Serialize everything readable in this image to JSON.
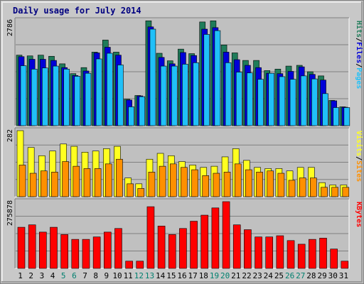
{
  "title": "Daily usage for July 2014",
  "colors": {
    "background": "#c8c8c8",
    "panel": "#c0c0c0",
    "hits": "#1f7c5a",
    "files": "#0000d8",
    "pages": "#20c0f8",
    "visits": "#ffff20",
    "sites": "#ff9000",
    "kbytes": "#ff0000",
    "weekend_label": "#00806f",
    "weekday_label": "#000000",
    "title": "#000080"
  },
  "chart_data": [
    {
      "type": "bar",
      "panel": "hits-files-pages",
      "y_max_label": "2786",
      "ylim": [
        0,
        2786
      ],
      "right_label": [
        "Pages",
        "/",
        "Files",
        "/",
        "Hits"
      ],
      "grid": true,
      "categories": [
        "1",
        "2",
        "3",
        "4",
        "5",
        "6",
        "7",
        "8",
        "9",
        "10",
        "11",
        "12",
        "13",
        "14",
        "15",
        "16",
        "17",
        "18",
        "19",
        "20",
        "21",
        "22",
        "23",
        "24",
        "25",
        "26",
        "27",
        "28",
        "29",
        "30",
        "31"
      ],
      "series": [
        {
          "name": "Hits",
          "values": [
            1870,
            1850,
            1870,
            1840,
            1640,
            1380,
            1540,
            1950,
            2270,
            1950,
            700,
            800,
            2780,
            1920,
            1720,
            2030,
            1910,
            2750,
            2780,
            2140,
            1930,
            1730,
            1730,
            1460,
            1500,
            1580,
            1600,
            1430,
            1320,
            670,
            500
          ]
        },
        {
          "name": "Files",
          "values": [
            1830,
            1760,
            1760,
            1730,
            1540,
            1330,
            1450,
            1930,
            2080,
            1870,
            680,
            790,
            2620,
            1810,
            1640,
            1940,
            1860,
            2560,
            2600,
            1950,
            1750,
            1600,
            1540,
            1390,
            1380,
            1440,
            1560,
            1360,
            1210,
            660,
            490
          ]
        },
        {
          "name": "Pages",
          "values": [
            1590,
            1500,
            1530,
            1580,
            1500,
            1310,
            1390,
            1770,
            1920,
            1610,
            500,
            770,
            2560,
            1580,
            1580,
            1630,
            1670,
            2420,
            2520,
            1670,
            1420,
            1400,
            1230,
            1390,
            1300,
            1230,
            1320,
            1240,
            850,
            480,
            480
          ]
        }
      ]
    },
    {
      "type": "bar",
      "panel": "visits-sites",
      "y_max_label": "282",
      "ylim": [
        0,
        282
      ],
      "right_label": [
        "Sites",
        "/",
        "Visits"
      ],
      "grid": true,
      "categories": [
        "1",
        "2",
        "3",
        "4",
        "5",
        "6",
        "7",
        "8",
        "9",
        "10",
        "11",
        "12",
        "13",
        "14",
        "15",
        "16",
        "17",
        "18",
        "19",
        "20",
        "21",
        "22",
        "23",
        "24",
        "25",
        "26",
        "27",
        "28",
        "29",
        "30",
        "31"
      ],
      "series": [
        {
          "name": "Visits",
          "values": [
            282,
            210,
            175,
            195,
            225,
            215,
            190,
            195,
            205,
            215,
            80,
            55,
            160,
            185,
            175,
            150,
            135,
            125,
            130,
            170,
            205,
            155,
            125,
            120,
            120,
            110,
            125,
            125,
            60,
            50,
            50
          ]
        },
        {
          "name": "Sites",
          "values": [
            135,
            100,
            110,
            105,
            150,
            130,
            120,
            120,
            140,
            160,
            55,
            35,
            105,
            130,
            140,
            125,
            115,
            90,
            100,
            105,
            140,
            115,
            105,
            110,
            100,
            70,
            80,
            80,
            40,
            40,
            40
          ]
        }
      ]
    },
    {
      "type": "bar",
      "panel": "kbytes",
      "y_max_label": "275878",
      "ylim": [
        0,
        275878
      ],
      "right_label": [
        "KBytes"
      ],
      "grid": true,
      "categories": [
        "1",
        "2",
        "3",
        "4",
        "5",
        "6",
        "7",
        "8",
        "9",
        "10",
        "11",
        "12",
        "13",
        "14",
        "15",
        "16",
        "17",
        "18",
        "19",
        "20",
        "21",
        "22",
        "23",
        "24",
        "25",
        "26",
        "27",
        "28",
        "29",
        "30",
        "31"
      ],
      "series": [
        {
          "name": "KBytes",
          "values": [
            170000,
            180000,
            150000,
            170000,
            140000,
            120000,
            120000,
            130000,
            150000,
            165000,
            30000,
            30000,
            255000,
            175000,
            140000,
            165000,
            195000,
            220000,
            250000,
            275878,
            180000,
            160000,
            130000,
            130000,
            135000,
            115000,
            100000,
            120000,
            125000,
            80000,
            30000
          ]
        }
      ]
    }
  ],
  "x_labels": [
    {
      "text": "1",
      "weekend": false
    },
    {
      "text": "2",
      "weekend": false
    },
    {
      "text": "3",
      "weekend": false
    },
    {
      "text": "4",
      "weekend": false
    },
    {
      "text": "5",
      "weekend": true
    },
    {
      "text": "6",
      "weekend": true
    },
    {
      "text": "7",
      "weekend": false
    },
    {
      "text": "8",
      "weekend": false
    },
    {
      "text": "9",
      "weekend": false
    },
    {
      "text": "10",
      "weekend": false
    },
    {
      "text": "11",
      "weekend": false
    },
    {
      "text": "12",
      "weekend": true
    },
    {
      "text": "13",
      "weekend": true
    },
    {
      "text": "14",
      "weekend": false
    },
    {
      "text": "15",
      "weekend": false
    },
    {
      "text": "16",
      "weekend": false
    },
    {
      "text": "17",
      "weekend": false
    },
    {
      "text": "18",
      "weekend": false
    },
    {
      "text": "19",
      "weekend": true
    },
    {
      "text": "20",
      "weekend": true
    },
    {
      "text": "21",
      "weekend": false
    },
    {
      "text": "22",
      "weekend": false
    },
    {
      "text": "23",
      "weekend": false
    },
    {
      "text": "24",
      "weekend": false
    },
    {
      "text": "25",
      "weekend": false
    },
    {
      "text": "26",
      "weekend": true
    },
    {
      "text": "27",
      "weekend": true
    },
    {
      "text": "28",
      "weekend": false
    },
    {
      "text": "29",
      "weekend": false
    },
    {
      "text": "30",
      "weekend": false
    },
    {
      "text": "31",
      "weekend": false
    }
  ]
}
